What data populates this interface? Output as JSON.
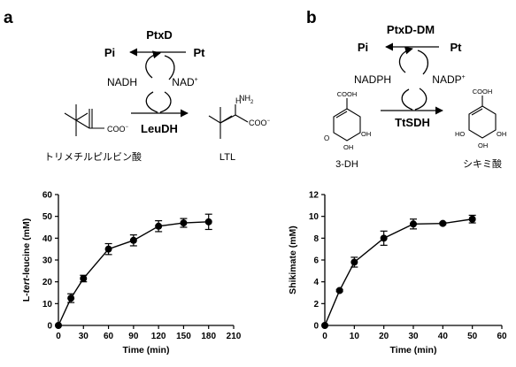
{
  "panel_a": {
    "letter": "a",
    "scheme": {
      "enzyme_top": "PtxD",
      "left_top": "Pi",
      "right_top": "Pt",
      "left_mid": "NADH",
      "right_mid": "NAD",
      "right_mid_sup": "+",
      "enzyme_bottom": "LeuDH",
      "nh2": "NH",
      "nh2_sub": "2",
      "h": "H",
      "coo_left": "COO",
      "coo_left_sup": "−",
      "coo_right": "COO",
      "coo_right_sup": "−",
      "substrate": "トリメチルピルビン酸",
      "product": "LTL"
    }
  },
  "panel_b": {
    "letter": "b",
    "scheme": {
      "enzyme_top": "PtxD-DM",
      "left_top": "Pi",
      "right_top": "Pt",
      "left_mid": "NADPH",
      "right_mid": "NADP",
      "right_mid_sup": "+",
      "enzyme_bottom": "TtSDH",
      "cooh": "COOH",
      "oh": "OH",
      "ho": "HO",
      "o": "O",
      "substrate": "3-DH",
      "product": "シキミ酸"
    }
  },
  "chart_data": [
    {
      "type": "line",
      "xlabel": "Time (min)",
      "ylabel_parts": [
        "L-",
        "tert",
        "-leucine (mM)"
      ],
      "xlim": [
        0,
        210
      ],
      "ylim": [
        0,
        60
      ],
      "xticks": [
        0,
        30,
        60,
        90,
        120,
        150,
        180,
        210
      ],
      "yticks": [
        0,
        10,
        20,
        30,
        40,
        50,
        60
      ],
      "series": [
        {
          "x": [
            0,
            15,
            30,
            60,
            90,
            120,
            150,
            180
          ],
          "y": [
            0,
            12.5,
            21.5,
            35,
            39,
            45.5,
            47,
            47.5
          ],
          "err": [
            0,
            2,
            1.5,
            2.5,
            2.5,
            2.5,
            2,
            3.5
          ]
        }
      ]
    },
    {
      "type": "line",
      "xlabel": "Time (min)",
      "ylabel_parts": [
        "Shikimate (mM)"
      ],
      "xlim": [
        0,
        60
      ],
      "ylim": [
        0,
        12
      ],
      "xticks": [
        0,
        10,
        20,
        30,
        40,
        50,
        60
      ],
      "yticks": [
        0,
        2,
        4,
        6,
        8,
        10,
        12
      ],
      "series": [
        {
          "x": [
            0,
            5,
            10,
            20,
            30,
            40,
            50
          ],
          "y": [
            0,
            3.2,
            5.8,
            8,
            9.3,
            9.35,
            9.75
          ],
          "err": [
            0,
            0.1,
            0.45,
            0.65,
            0.45,
            0.1,
            0.35
          ]
        }
      ]
    }
  ]
}
